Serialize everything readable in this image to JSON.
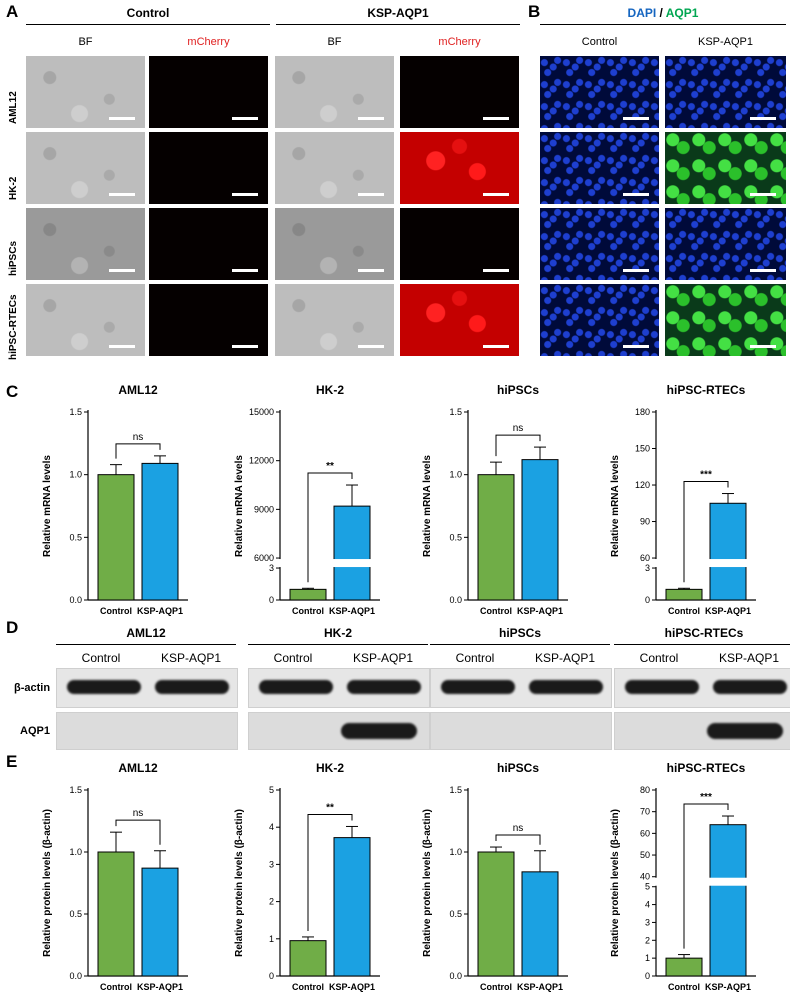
{
  "panels": {
    "A": {
      "label": "A",
      "groups": [
        "Control",
        "KSP-AQP1"
      ],
      "columns": [
        "BF",
        "mCherry",
        "BF",
        "mCherry"
      ],
      "rows": [
        "AML12",
        "HK-2",
        "hiPSCs",
        "hiPSC-RTECs"
      ]
    },
    "B": {
      "label": "B",
      "legend": {
        "dapi": "DAPI",
        "sep": " / ",
        "aqp1": "AQP1"
      },
      "columns": [
        "Control",
        "KSP-AQP1"
      ]
    },
    "C": {
      "label": "C"
    },
    "D": {
      "label": "D",
      "blots": [
        {
          "title": "AML12",
          "lanes": [
            "Control",
            "KSP-AQP1"
          ]
        },
        {
          "title": "HK-2",
          "lanes": [
            "Control",
            "KSP-AQP1"
          ]
        },
        {
          "title": "hiPSCs",
          "lanes": [
            "Control",
            "KSP-AQP1"
          ]
        },
        {
          "title": "hiPSC-RTECs",
          "lanes": [
            "Control",
            "KSP-AQP1"
          ]
        }
      ],
      "row_labels": [
        "β-actin",
        "AQP1"
      ]
    },
    "E": {
      "label": "E"
    }
  },
  "colors": {
    "control": "#70ad47",
    "ksp": "#1ba1e2",
    "mcherry": "#e02020"
  },
  "chart_data": [
    {
      "id": "C1",
      "type": "bar",
      "title": "AML12",
      "ylabel": "Relative mRNA levels",
      "categories": [
        "Control",
        "KSP-AQP1"
      ],
      "values": [
        1.0,
        1.09
      ],
      "errors": [
        0.08,
        0.06
      ],
      "ylim": [
        0,
        1.5
      ],
      "yticks": [
        "0.0",
        "0.5",
        "1.0",
        "1.5"
      ],
      "sig": "ns",
      "axis_break": false
    },
    {
      "id": "C2",
      "type": "bar",
      "title": "HK-2",
      "ylabel": "Relative mRNA levels",
      "categories": [
        "Control",
        "KSP-AQP1"
      ],
      "values": [
        1.0,
        9200
      ],
      "errors": [
        0.1,
        1300
      ],
      "ylim": [
        0,
        15000
      ],
      "yticks": [
        "0",
        "3",
        "6000",
        "9000",
        "12000",
        "15000"
      ],
      "sig": "**",
      "axis_break": true
    },
    {
      "id": "C3",
      "type": "bar",
      "title": "hiPSCs",
      "ylabel": "Relative mRNA levels",
      "categories": [
        "Control",
        "KSP-AQP1"
      ],
      "values": [
        1.0,
        1.12
      ],
      "errors": [
        0.1,
        0.1
      ],
      "ylim": [
        0,
        1.5
      ],
      "yticks": [
        "0.0",
        "0.5",
        "1.0",
        "1.5"
      ],
      "sig": "ns",
      "axis_break": false
    },
    {
      "id": "C4",
      "type": "bar",
      "title": "hiPSC-RTECs",
      "ylabel": "Relative mRNA levels",
      "categories": [
        "Control",
        "KSP-AQP1"
      ],
      "values": [
        1.0,
        105
      ],
      "errors": [
        0.1,
        8
      ],
      "ylim": [
        0,
        180
      ],
      "yticks": [
        "0",
        "3",
        "60",
        "90",
        "120",
        "150",
        "180"
      ],
      "sig": "***",
      "axis_break": true
    },
    {
      "id": "E1",
      "type": "bar",
      "title": "AML12",
      "ylabel": "Relative protein levels (β-actin)",
      "categories": [
        "Control",
        "KSP-AQP1"
      ],
      "values": [
        1.0,
        0.87
      ],
      "errors": [
        0.16,
        0.14
      ],
      "ylim": [
        0,
        1.5
      ],
      "yticks": [
        "0.0",
        "0.5",
        "1.0",
        "1.5"
      ],
      "sig": "ns",
      "axis_break": false
    },
    {
      "id": "E2",
      "type": "bar",
      "title": "HK-2",
      "ylabel": "Relative protein levels (β-actin)",
      "categories": [
        "Control",
        "KSP-AQP1"
      ],
      "values": [
        0.95,
        3.72
      ],
      "errors": [
        0.1,
        0.3
      ],
      "ylim": [
        0,
        5
      ],
      "yticks": [
        "0",
        "1",
        "2",
        "3",
        "4",
        "5"
      ],
      "sig": "**",
      "axis_break": false
    },
    {
      "id": "E3",
      "type": "bar",
      "title": "hiPSCs",
      "ylabel": "Relative protein levels (β-actin)",
      "categories": [
        "Control",
        "KSP-AQP1"
      ],
      "values": [
        1.0,
        0.84
      ],
      "errors": [
        0.04,
        0.17
      ],
      "ylim": [
        0,
        1.5
      ],
      "yticks": [
        "0.0",
        "0.5",
        "1.0",
        "1.5"
      ],
      "sig": "ns",
      "axis_break": false
    },
    {
      "id": "E4",
      "type": "bar",
      "title": "hiPSC-RTECs",
      "ylabel": "Relative protein levels (β-actin)",
      "categories": [
        "Control",
        "KSP-AQP1"
      ],
      "values": [
        1.0,
        64
      ],
      "errors": [
        0.2,
        4
      ],
      "ylim": [
        0,
        80
      ],
      "yticks": [
        "0",
        "1",
        "2",
        "3",
        "4",
        "5",
        "40",
        "50",
        "60",
        "70",
        "80"
      ],
      "sig": "***",
      "axis_break": true
    }
  ]
}
